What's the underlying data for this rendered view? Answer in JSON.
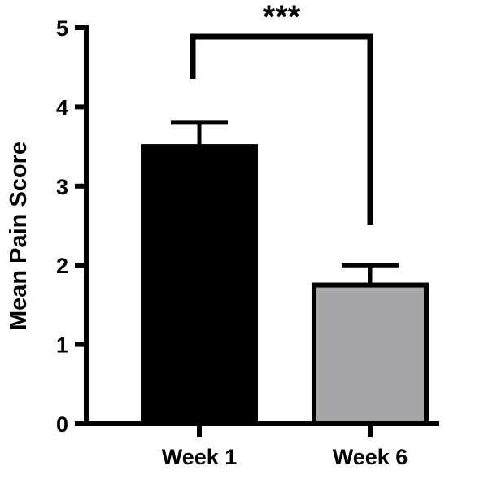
{
  "chart_data": {
    "type": "bar",
    "title": "",
    "xlabel": "",
    "ylabel": "Mean Pain Score",
    "ylim": [
      0,
      5
    ],
    "yticks": [
      0,
      1,
      2,
      3,
      4,
      5
    ],
    "ytick_labels": [
      "0",
      "1",
      "2",
      "3",
      "4",
      "5"
    ],
    "categories": [
      "Week 1",
      "Week 6"
    ],
    "values": [
      3.5,
      1.75
    ],
    "error_upper": [
      3.8,
      2.0
    ],
    "bar_colors": [
      "#000000",
      "#a6a6a8"
    ],
    "grid": false,
    "legend": "none",
    "significance": {
      "label": "***",
      "between": [
        "Week 1",
        "Week 6"
      ]
    }
  }
}
